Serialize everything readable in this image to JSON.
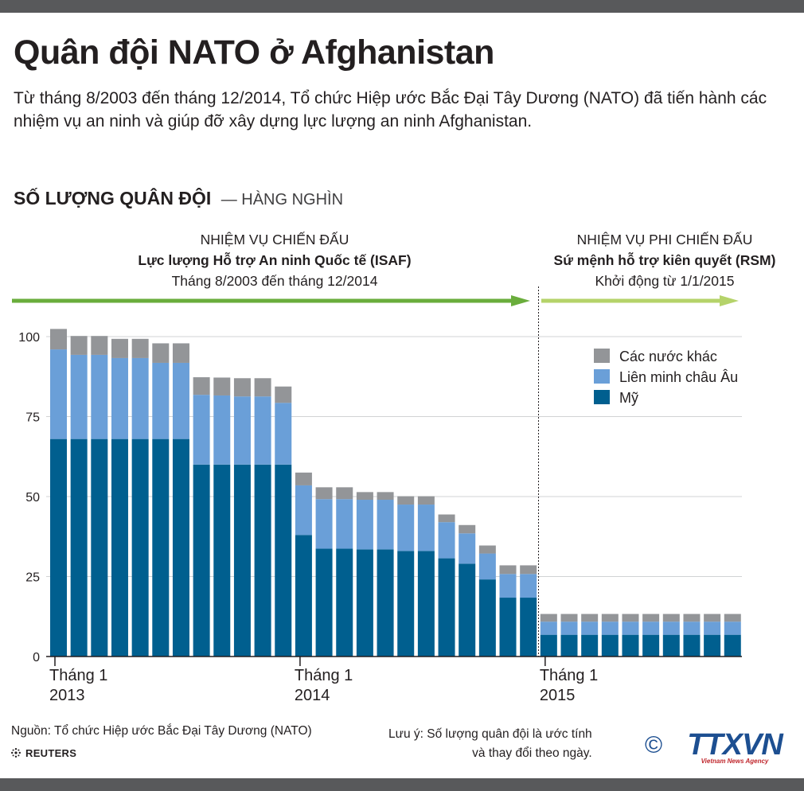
{
  "title": "Quân đội NATO ở Afghanistan",
  "subtitle": "Từ tháng 8/2003 đến tháng 12/2014, Tổ chức Hiệp ước Bắc Đại Tây Dương (NATO) đã tiến hành các nhiệm vụ an ninh và giúp đỡ xây dựng lực lượng an ninh Afghanistan.",
  "section": {
    "label": "SỐ LƯỢNG QUÂN ĐỘI",
    "unit": "— HÀNG NGHÌN"
  },
  "missions": {
    "isaf": {
      "type": "NHIỆM VỤ CHIẾN ĐẤU",
      "name": "Lực lượng Hỗ trợ An ninh Quốc tế (ISAF)",
      "period": "Tháng 8/2003 đến tháng 12/2014",
      "color": "#6aad3c"
    },
    "rsm": {
      "type": "NHIỆM VỤ PHI CHIẾN ĐẤU",
      "name": "Sứ mệnh hỗ trợ kiên quyết (RSM)",
      "period": "Khởi động từ 1/1/2015",
      "color": "#b5d36a"
    }
  },
  "chart_data": {
    "type": "bar",
    "stacked": true,
    "ylim": [
      0,
      100
    ],
    "yticks": [
      0,
      25,
      50,
      75,
      100
    ],
    "x_labels": [
      {
        "month": "Tháng 1",
        "year": "2013",
        "bar_index": 0
      },
      {
        "month": "Tháng 1",
        "year": "2014",
        "bar_index": 12
      },
      {
        "month": "Tháng 1",
        "year": "2015",
        "bar_index": 24
      }
    ],
    "series": [
      {
        "name": "Mỹ",
        "color": "#005f8f",
        "values": [
          68,
          68,
          68,
          68,
          68,
          68,
          68,
          60,
          60,
          60,
          60,
          60,
          38,
          33.7,
          33.7,
          33.5,
          33.5,
          33,
          33,
          30.7,
          29,
          24.1,
          18.4,
          18.4,
          6.8,
          6.8,
          6.8,
          6.8,
          6.8,
          6.8,
          6.8,
          6.8,
          6.8,
          6.8
        ]
      },
      {
        "name": "Liên minh châu Âu",
        "color": "#6a9fd8",
        "values": [
          28,
          26.3,
          26.3,
          25.3,
          25.3,
          23.8,
          23.8,
          21.8,
          21.6,
          21.3,
          21.3,
          19.3,
          15.5,
          15.5,
          15.5,
          15.5,
          15.5,
          14.5,
          14.5,
          11.3,
          9.5,
          8.1,
          7.4,
          7.4,
          4.1,
          4.1,
          4.1,
          4.1,
          4.1,
          4.1,
          4.1,
          4.1,
          4.1,
          4.1
        ]
      },
      {
        "name": "Các nước khác",
        "color": "#939598",
        "values": [
          6.4,
          5.9,
          5.9,
          6,
          6,
          6.1,
          6.1,
          5.5,
          5.6,
          5.7,
          5.7,
          5.1,
          4,
          3.7,
          3.7,
          2.4,
          2.4,
          2.6,
          2.6,
          2.4,
          2.6,
          2.5,
          2.7,
          2.7,
          2.4,
          2.4,
          2.4,
          2.4,
          2.4,
          2.4,
          2.4,
          2.4,
          2.4,
          2.4
        ]
      }
    ],
    "legend_position": "top-right",
    "legend_order": [
      "Các nước khác",
      "Liên minh châu Âu",
      "Mỹ"
    ],
    "divider_after_bar": 23
  },
  "footer": {
    "source": "Nguồn: Tổ chức Hiệp ước Bắc Đại Tây Dương (NATO)",
    "reuters": "REUTERS",
    "note_line1": "Lưu ý: Số lượng quân đội là ước tính",
    "note_line2": "và thay đổi theo ngày.",
    "copyright": "©",
    "agency": "TTXVN",
    "agency_tagline": "Vietnam News Agency"
  }
}
